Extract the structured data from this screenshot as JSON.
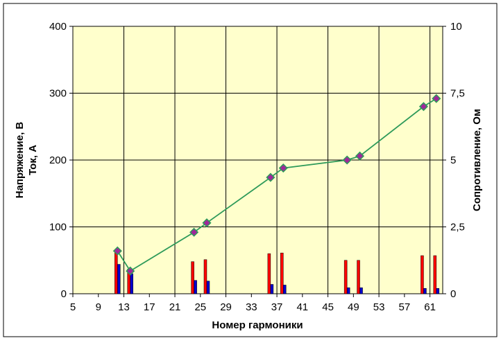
{
  "chart_data": {
    "type": "bar",
    "title": "",
    "xlabel": "Номер гармоники",
    "ylabel_left": [
      "Напряжение, В",
      "Ток, А"
    ],
    "ylabel_right": "Сопротивление, Ом",
    "xlim": [
      5,
      63
    ],
    "x_ticks": [
      "5",
      "9",
      "13",
      "17",
      "21",
      "25",
      "29",
      "33",
      "37",
      "41",
      "45",
      "49",
      "53",
      "57",
      "61"
    ],
    "ylim_left": [
      0,
      400
    ],
    "y_ticks_left": [
      "0",
      "100",
      "200",
      "300",
      "400"
    ],
    "ylim_right": [
      0,
      10
    ],
    "y_ticks_right": [
      "0",
      "2,5",
      "5",
      "7,5",
      "10"
    ],
    "grid": true,
    "plot_background": "#ffffcc",
    "series": [
      {
        "type": "bar",
        "axis": "left",
        "color": "#ff0000",
        "x": [
          12,
          14,
          24,
          26,
          36,
          38,
          48,
          50,
          60,
          62
        ],
        "values": [
          66,
          37,
          48,
          51,
          60,
          61,
          50,
          50,
          57,
          57
        ]
      },
      {
        "type": "bar",
        "axis": "left",
        "color": "#0000cc",
        "x": [
          12,
          14,
          24,
          26,
          36,
          38,
          48,
          50,
          60,
          62
        ],
        "values": [
          44,
          30,
          20,
          19,
          14,
          13,
          9,
          9,
          8,
          8
        ]
      },
      {
        "type": "line",
        "axis": "right",
        "color": "#2e9a5a",
        "marker_color": "#a0289a",
        "x": [
          12,
          14,
          24,
          26,
          36,
          38,
          48,
          50,
          60,
          62
        ],
        "values": [
          1.6,
          0.85,
          2.3,
          2.65,
          4.35,
          4.7,
          5.0,
          5.15,
          7.0,
          7.3
        ]
      }
    ]
  }
}
